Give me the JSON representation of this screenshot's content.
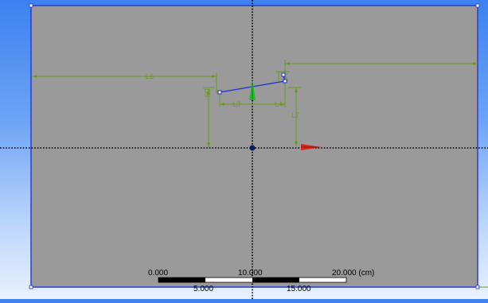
{
  "viewport": {
    "background_top": "#3b82f0",
    "background_bottom": "#e8f1fe",
    "plane_fill": "#9a9a9a",
    "plane_border": "#2a3cd6",
    "dimension_color": "#6a9a22",
    "sketch_color": "#1f2fd4",
    "origin_color": "#0b1f5a",
    "x_axis_color": "#d8261d",
    "y_axis_color": "#1fbf2a"
  },
  "dimensions": {
    "L6": "L6",
    "L3": "L3",
    "L4": "L4",
    "L7": "L7",
    "H2": "H2",
    "D": "D5"
  },
  "ruler": {
    "label_0": "0.000",
    "label_10": "10.000",
    "label_20": "20.000 (cm)",
    "label_5": "5.000",
    "label_15": "15.000"
  },
  "icons": {
    "x_axis": "x-axis-arrow-icon",
    "y_axis": "y-axis-arrow-icon",
    "origin": "origin-dot-icon"
  }
}
